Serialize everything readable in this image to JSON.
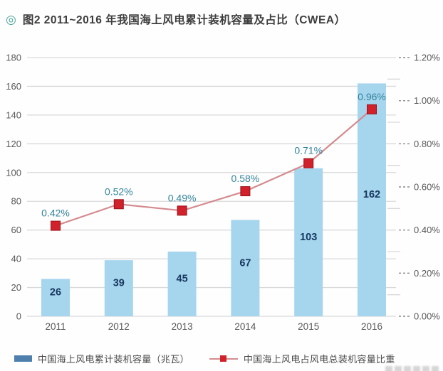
{
  "title": {
    "bullet_icon": "◎",
    "text": "图2 2011~2016 年我国海上风电累计装机容量及占比（CWEA）"
  },
  "chart_data": {
    "type": "bar+line combo",
    "categories": [
      "2011",
      "2012",
      "2013",
      "2014",
      "2015",
      "2016"
    ],
    "series": [
      {
        "name": "中国海上风电累计装机容量（兆瓦）",
        "type": "bar",
        "axis": "left",
        "values": [
          26,
          39,
          45,
          67,
          103,
          162
        ],
        "data_labels": [
          "26",
          "39",
          "45",
          "67",
          "103",
          "162"
        ]
      },
      {
        "name": "中国海上风电占风电总装机容量比重",
        "type": "line",
        "axis": "right",
        "values": [
          0.42,
          0.52,
          0.49,
          0.58,
          0.71,
          0.96
        ],
        "data_labels": [
          "0.42%",
          "0.52%",
          "0.49%",
          "0.58%",
          "0.71%",
          "0.96%"
        ]
      }
    ],
    "left_axis": {
      "min": 0,
      "max": 180,
      "step": 20,
      "tick_labels": [
        "0",
        "20",
        "40",
        "60",
        "80",
        "100",
        "120",
        "140",
        "160",
        "180"
      ]
    },
    "right_axis": {
      "min": 0,
      "max": 1.2,
      "step": 0.2,
      "minor_tick_step": 0.1,
      "tick_labels": [
        "0.00%",
        "0.20%",
        "0.40%",
        "0.60%",
        "0.80%",
        "1.00%",
        "1.20%"
      ]
    },
    "grid": true,
    "legend_position": "bottom",
    "colors": {
      "bar": "#a6d5ee",
      "bar_label": "#17375e",
      "line": "#d48b90",
      "marker": "#d1212b",
      "marker_border": "#9c1118",
      "pct_label": "#31849b",
      "grid": "#d9d9d9",
      "axis_text": "#595959",
      "title_bullet": "#4aa39b",
      "legend_bar_swatch": "#4e7fad"
    }
  },
  "legend": {
    "items": [
      {
        "label": "中国海上风电累计装机容量（兆瓦）"
      },
      {
        "label": "中国海上风电占风电总装机容量比重"
      }
    ]
  }
}
